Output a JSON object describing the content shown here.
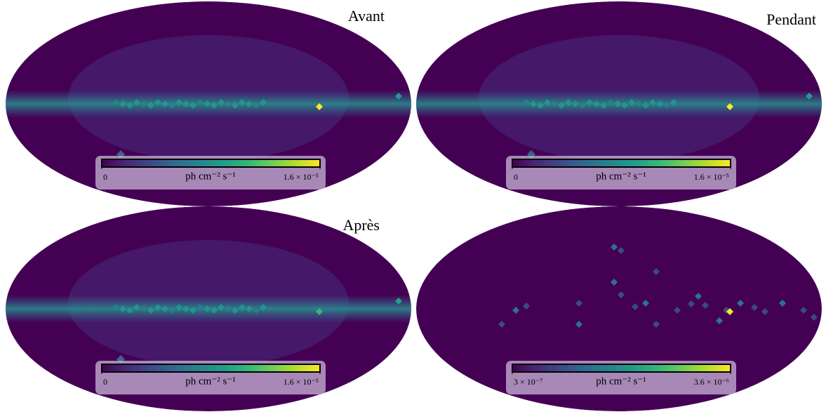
{
  "chart_data": [
    {
      "type": "skymap",
      "title": "Avant",
      "clim": [
        0,
        1.6e-05
      ],
      "cticks": [
        0,
        {
          "value": 1.6e-05,
          "label": "1.6 × 10⁻⁵"
        }
      ],
      "colorbar_label": "ph cm⁻² s⁻¹",
      "spot": "#fde725"
    },
    {
      "type": "skymap",
      "title": "Pendant",
      "clim": [
        0,
        1.6e-05
      ],
      "cticks": [
        0,
        {
          "value": 1.6e-05,
          "label": "1.6 × 10⁻⁵"
        }
      ],
      "colorbar_label": "ph cm⁻² s⁻¹",
      "spot": "#fde725"
    },
    {
      "type": "skymap",
      "title": "Après",
      "clim": [
        0,
        1.6e-05
      ],
      "cticks": [
        0,
        {
          "value": 1.6e-05,
          "label": "1.6 × 10⁻⁵"
        }
      ],
      "colorbar_label": "ph cm⁻² s⁻¹",
      "spot": "#35b779"
    },
    {
      "type": "skymap",
      "clim": [
        3e-07,
        3.6e-06
      ],
      "cticks": [
        {
          "value": 3e-07,
          "label": "3 × 10⁻⁷"
        },
        {
          "value": 3.6e-06,
          "label": "3.6 × 10⁻⁶"
        }
      ],
      "colorbar_label": "ph cm⁻² s⁻¹",
      "spot": "#fde725"
    }
  ]
}
